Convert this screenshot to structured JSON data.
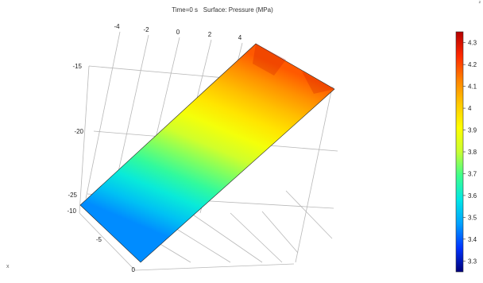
{
  "plot": {
    "title": "Time=0 s   Surface: Pressure (MPa)",
    "corner_mark": "²",
    "axis_mark": "x"
  },
  "chart_data": {
    "type": "heatmap",
    "title": "Time=0 s   Surface: Pressure (MPa)",
    "quantity": "Pressure (MPa)",
    "time": "0 s",
    "axes": {
      "x_ticks": [
        "-4",
        "-2",
        "0",
        "2",
        "4"
      ],
      "y_ticks": [
        "-15",
        "-20",
        "-25"
      ],
      "z_ticks": [
        "-10",
        "-5",
        "0"
      ]
    },
    "colorbar": {
      "min": 3.25,
      "max": 4.35,
      "ticks": [
        {
          "value": 4.3,
          "label": "4.3"
        },
        {
          "value": 4.2,
          "label": "4.2"
        },
        {
          "value": 4.1,
          "label": "4.1"
        },
        {
          "value": 4.0,
          "label": "4"
        },
        {
          "value": 3.9,
          "label": "3.9"
        },
        {
          "value": 3.8,
          "label": "3.8"
        },
        {
          "value": 3.7,
          "label": "3.7"
        },
        {
          "value": 3.6,
          "label": "3.6"
        },
        {
          "value": 3.5,
          "label": "3.5"
        },
        {
          "value": 3.4,
          "label": "3.4"
        },
        {
          "value": 3.3,
          "label": "3.3"
        }
      ],
      "colors": [
        "#00007a",
        "#0033ff",
        "#00a0ff",
        "#00e6e6",
        "#3cff8c",
        "#c8ff32",
        "#ffff00",
        "#ffc800",
        "#ff8200",
        "#ff2800",
        "#b40000"
      ]
    },
    "surface": {
      "low_value": 3.45,
      "high_value": 4.18
    },
    "grid": true
  }
}
